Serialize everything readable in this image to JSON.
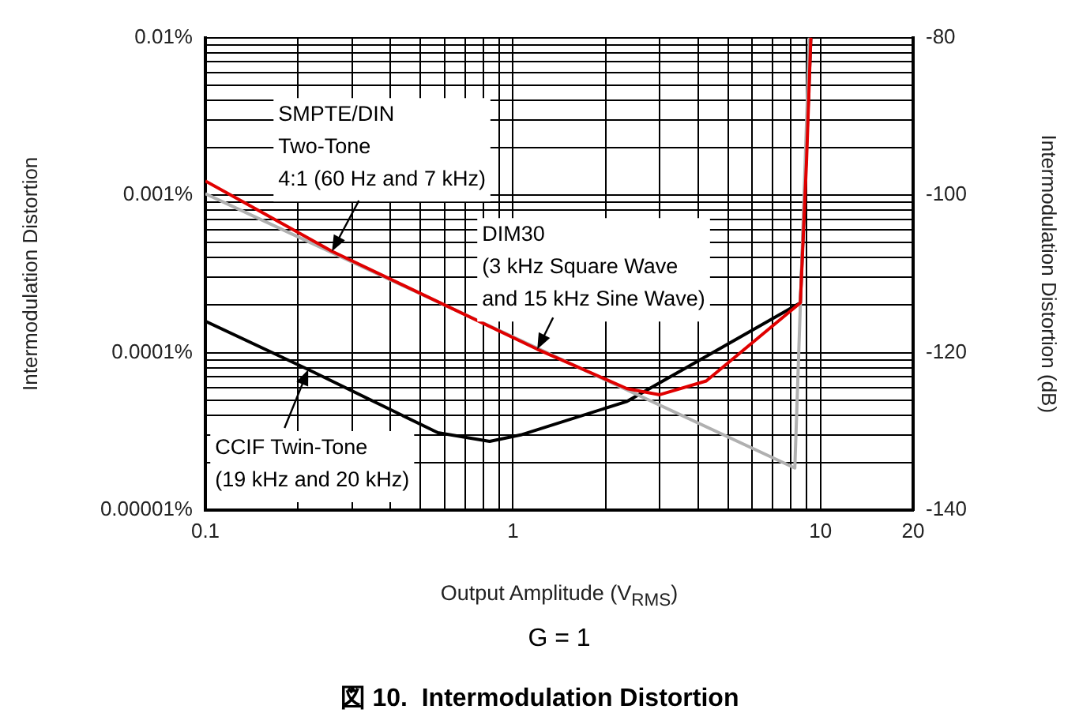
{
  "chart_data": {
    "type": "line",
    "title": "図 10.  Intermodulation Distortion",
    "xlabel": "Output Amplitude (V$_{RMS}$)",
    "ylabel": "Intermodulation Distortion",
    "y2label": "Intermodulation Distortion (dB)",
    "series": [
      {
        "color": "#e00000",
        "x": [
          0.1,
          0.258,
          1.2,
          2.35,
          3.0,
          4.25,
          8.6,
          9.0,
          9.3
        ],
        "values": [
          0.00123,
          0.00044,
          0.000105,
          5.9e-05,
          5.4e-05,
          6.6e-05,
          0.000207,
          0.0016,
          0.01
        ]
      },
      {
        "color": "#b0b0b0",
        "x": [
          0.1,
          8.25,
          9.2
        ],
        "values": [
          0.00102,
          1.85e-05,
          0.01
        ]
      },
      {
        "color": "#000000",
        "x": [
          0.1,
          0.216,
          0.57,
          0.84,
          1.06,
          2.35,
          8.6,
          9.3
        ],
        "values": [
          0.000158,
          7.8e-05,
          3.1e-05,
          2.73e-05,
          3e-05,
          4.9e-05,
          0.000207,
          0.01
        ]
      }
    ],
    "log": "xy",
    "grid": true,
    "legend": false,
    "marker": "none",
    "xlim": [
      0.1,
      20
    ],
    "xticks": [
      0.1,
      {
        "value": 0.2,
        "label": null
      },
      {
        "value": 0.3,
        "label": null
      },
      {
        "value": 0.4,
        "label": null
      },
      {
        "value": 0.5,
        "label": null
      },
      {
        "value": 0.6,
        "label": null
      },
      {
        "value": 0.7,
        "label": null
      },
      {
        "value": 0.8,
        "label": null
      },
      {
        "value": 0.9,
        "label": null
      },
      1,
      {
        "value": 2,
        "label": null
      },
      {
        "value": 3,
        "label": null
      },
      {
        "value": 4,
        "label": null
      },
      {
        "value": 5,
        "label": null
      },
      {
        "value": 6,
        "label": null
      },
      {
        "value": 7,
        "label": null
      },
      {
        "value": 8,
        "label": null
      },
      {
        "value": 9,
        "label": null
      },
      10,
      20
    ],
    "ylim": [
      1e-05,
      0.01
    ],
    "yticks": [
      {
        "value": 1e-05,
        "label": "0.00001%"
      },
      {
        "value": 2e-05,
        "label": null
      },
      {
        "value": 3e-05,
        "label": null
      },
      {
        "value": 4e-05,
        "label": null
      },
      {
        "value": 5e-05,
        "label": null
      },
      {
        "value": 6e-05,
        "label": null
      },
      {
        "value": 7e-05,
        "label": null
      },
      {
        "value": 8e-05,
        "label": null
      },
      {
        "value": 9e-05,
        "label": null
      },
      {
        "value": 0.0001,
        "label": "0.0001%"
      },
      {
        "value": 0.0002,
        "label": null
      },
      {
        "value": 0.0003,
        "label": null
      },
      {
        "value": 0.0004,
        "label": null
      },
      {
        "value": 0.0005,
        "label": null
      },
      {
        "value": 0.0006,
        "label": null
      },
      {
        "value": 0.0007,
        "label": null
      },
      {
        "value": 0.0008,
        "label": null
      },
      {
        "value": 0.0009,
        "label": null
      },
      {
        "value": 0.001,
        "label": "0.001%"
      },
      {
        "value": 0.002,
        "label": null
      },
      {
        "value": 0.003,
        "label": null
      },
      {
        "value": 0.004,
        "label": null
      },
      {
        "value": 0.005,
        "label": null
      },
      {
        "value": 0.006,
        "label": null
      },
      {
        "value": 0.007,
        "label": null
      },
      {
        "value": 0.008,
        "label": null
      },
      {
        "value": 0.009,
        "label": null
      },
      {
        "value": 0.01,
        "label": "0.01%"
      }
    ],
    "y2lim": [
      -140,
      -80
    ],
    "y2ticks": [
      -140,
      -120,
      -100,
      -80
    ],
    "annotations": [
      {
        "text": "SMPTE/DIN\nTwo-Tone\n4:1 (60 Hz and 7 kHz)",
        "x": 0.258,
        "y": 0.00044
      },
      {
        "text": "DIM30\n(3 kHz Square Wave\nand 15 kHz Sine Wave)",
        "x": 1.2,
        "y": 0.000105
      },
      {
        "text": "CCIF Twin-Tone\n(19 kHz and 20 kHz)",
        "x": 0.216,
        "y": 7.8e-05
      },
      "G = 1"
    ]
  }
}
